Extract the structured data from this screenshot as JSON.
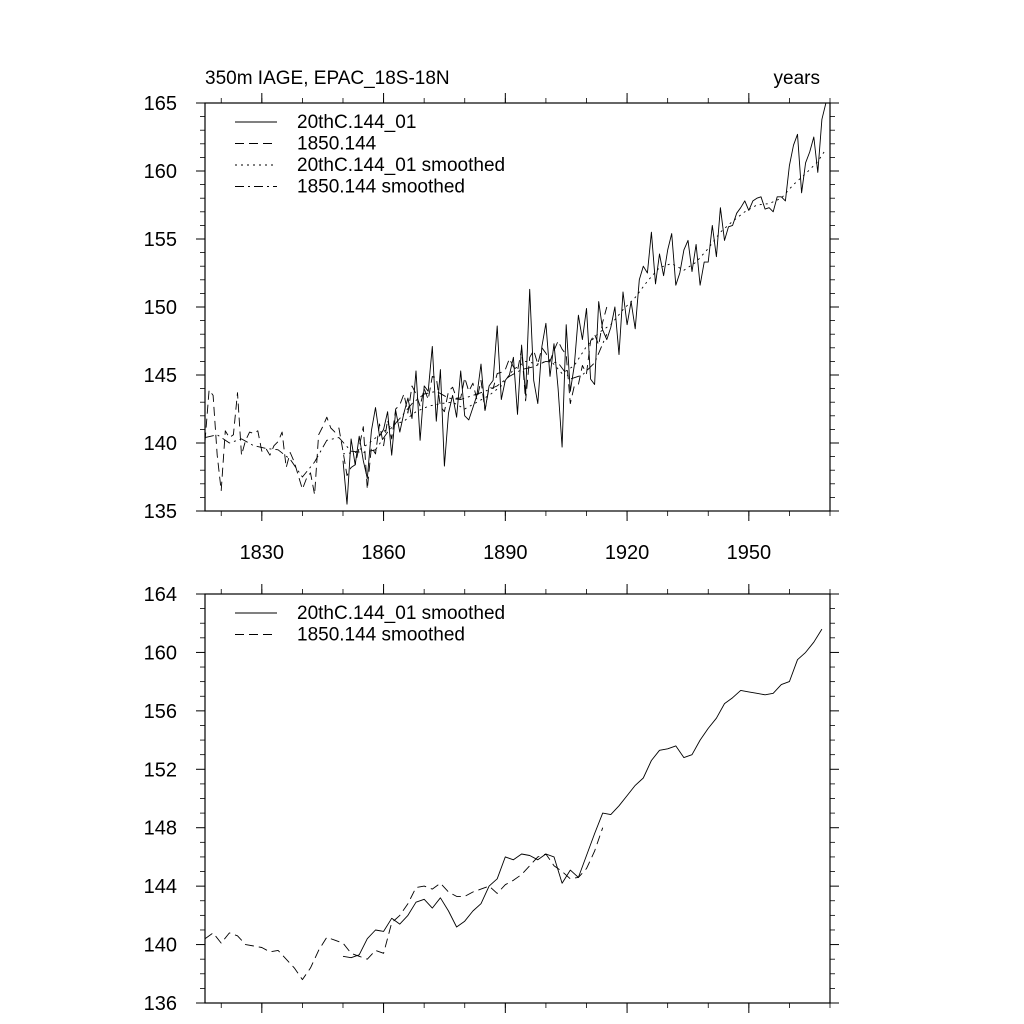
{
  "chart_data": [
    {
      "type": "line",
      "title_left": "350m IAGE, EPAC_18S-18N",
      "title_right": "years",
      "xlim": [
        1816,
        1970
      ],
      "ylim": [
        135,
        165
      ],
      "y_ticks": [
        135,
        140,
        145,
        150,
        155,
        160,
        165
      ],
      "x_ticks": [
        1830,
        1860,
        1890,
        1920,
        1950
      ],
      "x_tick_labels": [
        "1830",
        "1860",
        "1890",
        "1920",
        "1950"
      ],
      "legend_position": "top-left",
      "series": [
        {
          "name": "20thC.144_01",
          "style": "solid",
          "x": [
            1850,
            1851,
            1852,
            1853,
            1854,
            1855,
            1856,
            1857,
            1858,
            1859,
            1860,
            1861,
            1862,
            1863,
            1864,
            1865,
            1866,
            1867,
            1868,
            1869,
            1870,
            1871,
            1872,
            1873,
            1874,
            1875,
            1876,
            1877,
            1878,
            1879,
            1880,
            1881,
            1882,
            1883,
            1884,
            1885,
            1886,
            1887,
            1888,
            1889,
            1890,
            1891,
            1892,
            1893,
            1894,
            1895,
            1896,
            1897,
            1898,
            1899,
            1900,
            1901,
            1902,
            1903,
            1904,
            1905,
            1906,
            1907,
            1908,
            1909,
            1910,
            1911,
            1912,
            1913,
            1914,
            1915,
            1916,
            1917,
            1918,
            1919,
            1920,
            1921,
            1922,
            1923,
            1924,
            1925,
            1926,
            1927,
            1928,
            1929,
            1930,
            1931,
            1932,
            1933,
            1934,
            1935,
            1936,
            1937,
            1938,
            1939,
            1940,
            1941,
            1942,
            1943,
            1944,
            1945,
            1946,
            1947,
            1948,
            1949,
            1950,
            1951,
            1952,
            1953,
            1954,
            1955,
            1956,
            1957,
            1958,
            1959,
            1960,
            1961,
            1962,
            1963,
            1964,
            1965,
            1966,
            1967,
            1968,
            1969
          ],
          "values": [
            138.7,
            135.5,
            140.3,
            138.4,
            140.5,
            138.7,
            137.4,
            140.9,
            142.6,
            140.5,
            141.0,
            142.3,
            139.1,
            142.4,
            140.8,
            142.2,
            143.3,
            141.8,
            145.3,
            140.2,
            144.2,
            143.8,
            147.1,
            141.6,
            145.4,
            138.3,
            142.2,
            143.5,
            141.9,
            145.3,
            142.0,
            141.7,
            142.6,
            143.5,
            145.8,
            142.4,
            144.2,
            144.6,
            148.6,
            143.2,
            144.6,
            145.0,
            146.3,
            142.1,
            147.2,
            143.5,
            151.3,
            144.6,
            142.9,
            147.1,
            148.8,
            144.9,
            147.3,
            144.0,
            139.7,
            148.7,
            143.8,
            145.7,
            149.4,
            147.6,
            149.9,
            144.7,
            144.3,
            150.4,
            148.3,
            147.6,
            148.5,
            150.0,
            146.5,
            151.1,
            148.7,
            150.4,
            148.4,
            152.0,
            153.0,
            152.5,
            155.5,
            151.7,
            153.9,
            152.3,
            154.2,
            155.4,
            151.6,
            152.5,
            154.2,
            154.9,
            152.6,
            154.6,
            151.6,
            153.3,
            153.3,
            156.0,
            153.7,
            157.3,
            154.9,
            155.9,
            156.0,
            156.9,
            157.3,
            157.8,
            157.1,
            157.8,
            158.0,
            158.1,
            157.2,
            157.3,
            157.0,
            158.1,
            158.1,
            157.8,
            160.4,
            161.9,
            162.7,
            158.4,
            160.6,
            161.4,
            162.5,
            159.9,
            163.8,
            165.0
          ]
        },
        {
          "name": "1850.144",
          "style": "dashed",
          "x": [
            1816,
            1817,
            1818,
            1819,
            1820,
            1821,
            1822,
            1823,
            1824,
            1825,
            1826,
            1827,
            1828,
            1829,
            1830,
            1831,
            1832,
            1833,
            1834,
            1835,
            1836,
            1837,
            1838,
            1839,
            1840,
            1841,
            1842,
            1843,
            1844,
            1845,
            1846,
            1847,
            1848,
            1849,
            1850,
            1851,
            1852,
            1853,
            1854,
            1855,
            1856,
            1857,
            1858,
            1859,
            1860,
            1861,
            1862,
            1863,
            1864,
            1865,
            1866,
            1867,
            1868,
            1869,
            1870,
            1871,
            1872,
            1873,
            1874,
            1875,
            1876,
            1877,
            1878,
            1879,
            1880,
            1881,
            1882,
            1883,
            1884,
            1885,
            1886,
            1887,
            1888,
            1889,
            1890,
            1891,
            1892,
            1893,
            1894,
            1895,
            1896,
            1897,
            1898,
            1899,
            1900,
            1901,
            1902,
            1903,
            1904,
            1905,
            1906,
            1907,
            1908,
            1909,
            1910,
            1911,
            1912,
            1913,
            1914,
            1915
          ],
          "values": [
            140.1,
            143.9,
            143.5,
            139.1,
            136.5,
            140.9,
            140.4,
            140.6,
            143.7,
            139.1,
            140.2,
            140.8,
            140.7,
            140.9,
            139.4,
            139.6,
            139.1,
            139.8,
            140.1,
            140.8,
            138.2,
            139.3,
            138.6,
            137.6,
            136.6,
            137.4,
            137.8,
            136.2,
            140.6,
            141.2,
            141.9,
            141.1,
            140.8,
            141.1,
            139.4,
            137.6,
            138.2,
            138.4,
            139.7,
            141.2,
            136.6,
            139.7,
            139.2,
            141.4,
            139.8,
            141.7,
            140.3,
            142.5,
            142.8,
            143.6,
            142.2,
            144.2,
            143.6,
            142.7,
            144.0,
            143.2,
            144.9,
            144.8,
            142.7,
            142.3,
            143.8,
            144.1,
            143.3,
            143.3,
            144.8,
            143.8,
            144.4,
            143.2,
            144.6,
            142.4,
            144.1,
            144.0,
            145.1,
            145.2,
            145.4,
            146.2,
            145.6,
            145.3,
            146.9,
            143.1,
            146.3,
            146.8,
            145.8,
            147.0,
            146.6,
            146.0,
            146.8,
            147.5,
            146.9,
            146.5,
            142.9,
            144.2,
            144.3,
            145.7,
            145.1,
            147.5,
            148.0,
            147.2,
            148.9,
            150.0
          ]
        },
        {
          "name": "20thC.144_01 smoothed",
          "style": "dotted",
          "x": [
            1850,
            1853,
            1856,
            1859,
            1862,
            1865,
            1868,
            1871,
            1874,
            1877,
            1880,
            1883,
            1886,
            1889,
            1892,
            1895,
            1898,
            1901,
            1904,
            1907,
            1910,
            1913,
            1916,
            1919,
            1922,
            1925,
            1928,
            1931,
            1934,
            1937,
            1940,
            1943,
            1946,
            1949,
            1952,
            1955,
            1958,
            1961,
            1964,
            1967,
            1969
          ],
          "values": [
            139.2,
            139.3,
            139.9,
            140.6,
            141.3,
            141.6,
            142.3,
            142.7,
            142.9,
            143.0,
            142.5,
            143.0,
            143.5,
            144.2,
            145.4,
            146.0,
            145.8,
            146.1,
            145.1,
            145.7,
            147.1,
            148.1,
            148.7,
            149.8,
            150.7,
            151.9,
            152.9,
            153.2,
            152.7,
            153.3,
            154.3,
            155.5,
            156.3,
            157.0,
            157.5,
            157.6,
            158.0,
            159.0,
            159.8,
            160.7,
            161.6
          ]
        },
        {
          "name": "1850.144 smoothed",
          "style": "dashdot",
          "x": [
            1816,
            1819,
            1822,
            1825,
            1828,
            1831,
            1834,
            1837,
            1840,
            1843,
            1846,
            1849,
            1852,
            1855,
            1858,
            1861,
            1864,
            1867,
            1870,
            1873,
            1876,
            1879,
            1882,
            1885,
            1888,
            1891,
            1894,
            1897,
            1900,
            1903,
            1906,
            1909,
            1912,
            1915
          ],
          "values": [
            140.4,
            140.6,
            140.0,
            140.3,
            139.8,
            139.6,
            139.5,
            138.8,
            137.5,
            138.6,
            140.2,
            140.4,
            139.4,
            139.3,
            139.5,
            140.8,
            141.8,
            142.9,
            143.6,
            143.8,
            143.3,
            143.2,
            143.5,
            143.8,
            144.2,
            144.9,
            145.4,
            145.6,
            146.0,
            145.9,
            144.7,
            145.0,
            145.9,
            148.0
          ]
        }
      ]
    },
    {
      "type": "line",
      "xlim": [
        1816,
        1970
      ],
      "ylim": [
        136,
        164
      ],
      "y_ticks": [
        136,
        140,
        144,
        148,
        152,
        156,
        160,
        164
      ],
      "x_ticks": [
        1830,
        1860,
        1890,
        1920,
        1950
      ],
      "legend_position": "top-left",
      "series": [
        {
          "name": "20thC.144_01 smoothed",
          "style": "solid",
          "x": [
            1850,
            1852,
            1854,
            1856,
            1858,
            1860,
            1862,
            1864,
            1866,
            1868,
            1870,
            1872,
            1874,
            1876,
            1878,
            1880,
            1882,
            1884,
            1886,
            1888,
            1890,
            1892,
            1894,
            1896,
            1898,
            1900,
            1902,
            1904,
            1906,
            1908,
            1910,
            1912,
            1914,
            1916,
            1918,
            1920,
            1922,
            1924,
            1926,
            1928,
            1930,
            1932,
            1934,
            1936,
            1938,
            1940,
            1942,
            1944,
            1946,
            1948,
            1950,
            1952,
            1954,
            1956,
            1958,
            1960,
            1962,
            1964,
            1966,
            1968
          ],
          "values": [
            139.2,
            139.1,
            139.3,
            140.4,
            141.0,
            140.9,
            141.8,
            141.4,
            142.0,
            142.9,
            143.1,
            142.5,
            143.2,
            142.3,
            141.2,
            141.6,
            142.3,
            142.8,
            144.0,
            144.5,
            146.0,
            145.8,
            146.2,
            146.1,
            145.8,
            146.2,
            146.0,
            144.2,
            145.1,
            144.6,
            146.1,
            147.6,
            149.0,
            148.9,
            149.5,
            150.2,
            150.9,
            151.4,
            152.6,
            153.3,
            153.4,
            153.6,
            152.8,
            153.0,
            154.0,
            154.8,
            155.5,
            156.5,
            156.9,
            157.4,
            157.3,
            157.2,
            157.1,
            157.2,
            157.8,
            158.0,
            159.5,
            160.0,
            160.7,
            161.6
          ]
        },
        {
          "name": "1850.144 smoothed",
          "style": "dashed",
          "x": [
            1816,
            1818,
            1820,
            1822,
            1824,
            1826,
            1828,
            1830,
            1832,
            1834,
            1836,
            1838,
            1840,
            1842,
            1844,
            1846,
            1848,
            1850,
            1852,
            1854,
            1856,
            1858,
            1860,
            1862,
            1864,
            1866,
            1868,
            1870,
            1872,
            1874,
            1876,
            1878,
            1880,
            1882,
            1884,
            1886,
            1888,
            1890,
            1892,
            1894,
            1896,
            1898,
            1900,
            1902,
            1904,
            1906,
            1908,
            1910,
            1912,
            1914
          ],
          "values": [
            140.4,
            140.8,
            140.1,
            140.8,
            140.6,
            140.0,
            139.9,
            139.8,
            139.5,
            139.6,
            139.0,
            138.4,
            137.6,
            138.4,
            139.6,
            140.5,
            140.3,
            140.1,
            139.4,
            139.2,
            139.0,
            139.6,
            139.4,
            141.5,
            142.0,
            142.8,
            143.9,
            144.0,
            143.8,
            144.2,
            143.6,
            143.3,
            143.3,
            143.6,
            143.8,
            144.0,
            143.5,
            144.1,
            144.4,
            144.8,
            145.4,
            146.0,
            146.2,
            145.4,
            145.0,
            144.5,
            144.6,
            145.2,
            146.4,
            148.0
          ]
        }
      ]
    }
  ]
}
